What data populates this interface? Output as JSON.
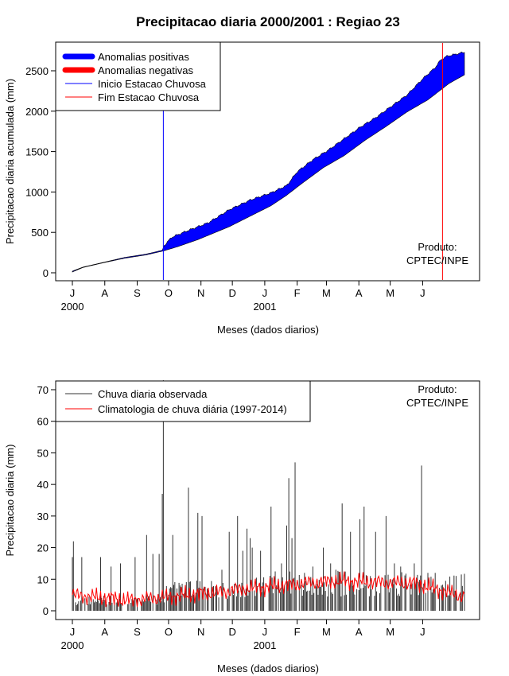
{
  "chart_data": [
    {
      "type": "area",
      "title": "Precipitacao diaria 2000/2001 : Regiao 23",
      "xlabel": "Meses (dados diarios)",
      "ylabel": "Precipitacao diaria acumulada (mm)",
      "ylim": [
        0,
        2800
      ],
      "yticks": [
        0,
        500,
        1000,
        1500,
        2000,
        2500
      ],
      "months": [
        "J",
        "A",
        "S",
        "O",
        "N",
        "D",
        "J",
        "F",
        "M",
        "A",
        "M",
        "J"
      ],
      "year_labels": [
        "2000",
        "2001"
      ],
      "legend": [
        "Anomalias positivas",
        "Anomalias negativas",
        "Inicio Estacao Chuvosa",
        "Fim Estacao Chuvosa"
      ],
      "legend_position": "top-left",
      "credit": [
        "Produto:",
        "CPTEC/INPE"
      ],
      "colors": {
        "positive": "#0000ff",
        "negative": "#ff0000",
        "start": "#0000ff",
        "end": "#ff0000"
      },
      "onset_day": 87,
      "end_day": 354,
      "observed_keypoints": [
        [
          0,
          20
        ],
        [
          10,
          70
        ],
        [
          30,
          130
        ],
        [
          50,
          190
        ],
        [
          70,
          230
        ],
        [
          80,
          260
        ],
        [
          86,
          280
        ],
        [
          88,
          340
        ],
        [
          95,
          440
        ],
        [
          110,
          520
        ],
        [
          130,
          620
        ],
        [
          150,
          780
        ],
        [
          170,
          900
        ],
        [
          190,
          990
        ],
        [
          205,
          1080
        ],
        [
          215,
          1250
        ],
        [
          230,
          1400
        ],
        [
          245,
          1520
        ],
        [
          260,
          1660
        ],
        [
          275,
          1800
        ],
        [
          290,
          1920
        ],
        [
          305,
          2060
        ],
        [
          320,
          2200
        ],
        [
          335,
          2400
        ],
        [
          347,
          2540
        ],
        [
          352,
          2630
        ],
        [
          358,
          2680
        ],
        [
          375,
          2730
        ]
      ],
      "climatology_keypoints": [
        [
          0,
          10
        ],
        [
          10,
          65
        ],
        [
          30,
          125
        ],
        [
          50,
          180
        ],
        [
          70,
          220
        ],
        [
          87,
          270
        ],
        [
          100,
          320
        ],
        [
          120,
          410
        ],
        [
          150,
          570
        ],
        [
          170,
          700
        ],
        [
          190,
          830
        ],
        [
          205,
          960
        ],
        [
          220,
          1110
        ],
        [
          240,
          1300
        ],
        [
          260,
          1450
        ],
        [
          280,
          1640
        ],
        [
          300,
          1810
        ],
        [
          320,
          1990
        ],
        [
          340,
          2140
        ],
        [
          360,
          2340
        ],
        [
          375,
          2450
        ]
      ]
    },
    {
      "type": "bar",
      "xlabel": "Meses (dados diarios)",
      "ylabel": "Precipitacao diaria (mm)",
      "ylim": [
        0,
        73
      ],
      "yticks": [
        0,
        10,
        20,
        30,
        40,
        50,
        60,
        70
      ],
      "months": [
        "J",
        "A",
        "S",
        "O",
        "N",
        "D",
        "J",
        "F",
        "M",
        "A",
        "M",
        "J"
      ],
      "year_labels": [
        "2000",
        "2001"
      ],
      "legend": [
        "Chuva diaria observada",
        "Climatologia de chuva diária (1997-2014)"
      ],
      "legend_position": "top-left",
      "credit": [
        "Produto:",
        "CPTEC/INPE"
      ],
      "colors": {
        "observed": "#333333",
        "climatology": "#ff0000"
      },
      "peaks": [
        [
          0,
          17
        ],
        [
          1,
          22
        ],
        [
          9,
          17
        ],
        [
          27,
          17
        ],
        [
          37,
          14
        ],
        [
          46,
          15
        ],
        [
          60,
          17
        ],
        [
          71,
          24
        ],
        [
          77,
          18
        ],
        [
          83,
          18
        ],
        [
          86,
          37
        ],
        [
          87,
          73
        ],
        [
          96,
          24
        ],
        [
          111,
          39
        ],
        [
          120,
          31
        ],
        [
          124,
          30
        ],
        [
          143,
          13
        ],
        [
          150,
          25
        ],
        [
          158,
          30
        ],
        [
          163,
          19
        ],
        [
          167,
          26
        ],
        [
          170,
          23
        ],
        [
          172,
          20
        ],
        [
          180,
          19
        ],
        [
          190,
          33
        ],
        [
          200,
          15
        ],
        [
          205,
          27
        ],
        [
          207,
          42
        ],
        [
          210,
          23
        ],
        [
          213,
          47
        ],
        [
          222,
          12
        ],
        [
          230,
          14
        ],
        [
          240,
          20
        ],
        [
          247,
          15
        ],
        [
          252,
          13
        ],
        [
          258,
          34
        ],
        [
          266,
          25
        ],
        [
          275,
          29
        ],
        [
          279,
          33
        ],
        [
          285,
          11
        ],
        [
          290,
          25
        ],
        [
          300,
          30
        ],
        [
          308,
          15
        ],
        [
          314,
          14
        ],
        [
          327,
          15
        ],
        [
          334,
          46
        ],
        [
          340,
          12
        ],
        [
          347,
          12
        ]
      ]
    }
  ]
}
